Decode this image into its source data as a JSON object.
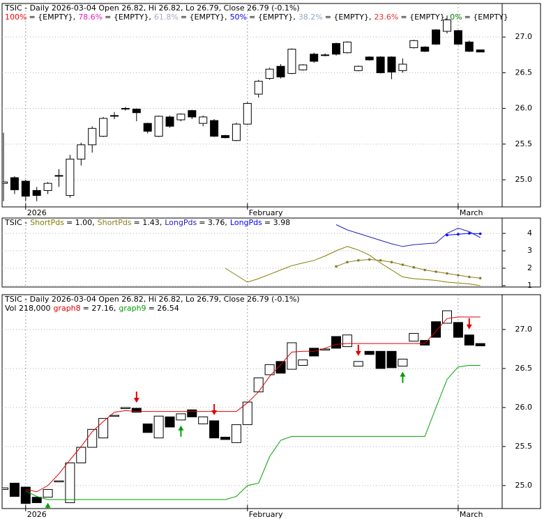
{
  "chart_data": [
    {
      "type": "candlestick",
      "title": "TSIC - Daily 2026-03-04 Open 26.82, Hi 26.82, Lo 26.79, Close 26.79 (-0.1%)",
      "fib_levels": [
        {
          "label": "100%",
          "text": "= {EMPTY},",
          "color": "#ff0000"
        },
        {
          "label": "78.6%",
          "text": "= {EMPTY},",
          "color": "#e020c0"
        },
        {
          "label": "61.8%",
          "text": "= {EMPTY},",
          "color": "#a8a8c8"
        },
        {
          "label": "50%",
          "text": "= {EMPTY},",
          "color": "#0000ff"
        },
        {
          "label": "38.2%",
          "text": "= {EMPTY},",
          "color": "#90a8c8"
        },
        {
          "label": "23.6%",
          "text": "= {EMPTY},",
          "color": "#e03030"
        },
        {
          "label": "0%",
          "text": "= {EMPTY}",
          "color": "#008000"
        }
      ],
      "categories": [
        null,
        null,
        "2026",
        null,
        null,
        null,
        null,
        null,
        null,
        null,
        null,
        null,
        null,
        null,
        null,
        null,
        null,
        null,
        null,
        null,
        null,
        null,
        "February",
        null,
        null,
        null,
        null,
        null,
        null,
        null,
        null,
        null,
        null,
        null,
        null,
        null,
        null,
        null,
        null,
        null,
        null,
        "March",
        null,
        null
      ],
      "open": [
        24.95,
        25.03,
        24.98,
        24.85,
        24.85,
        25.05,
        24.78,
        25.29,
        25.49,
        25.61,
        25.89,
        25.99,
        25.99,
        25.79,
        25.61,
        25.88,
        25.84,
        25.97,
        25.79,
        25.83,
        25.62,
        25.55,
        25.78,
        26.2,
        26.42,
        26.59,
        26.49,
        26.54,
        26.76,
        26.74,
        26.91,
        26.78,
        26.53,
        26.72,
        26.72,
        26.72,
        26.53,
        26.85,
        26.86,
        27.1,
        27.08,
        27.09,
        26.93,
        26.82
      ],
      "high": [
        25.66,
        25.05,
        25.0,
        24.9,
        24.97,
        25.15,
        25.35,
        25.52,
        25.75,
        25.88,
        25.95,
        26.02,
        26.0,
        25.8,
        25.9,
        25.9,
        25.93,
        25.98,
        25.9,
        25.85,
        25.63,
        25.8,
        26.09,
        26.4,
        26.57,
        26.62,
        26.84,
        26.62,
        26.78,
        26.77,
        26.92,
        26.94,
        26.6,
        26.73,
        26.73,
        26.73,
        26.7,
        26.96,
        26.87,
        27.11,
        27.3,
        27.1,
        26.95,
        26.82
      ],
      "low": [
        24.7,
        24.8,
        24.7,
        24.7,
        24.8,
        24.9,
        24.75,
        25.2,
        25.38,
        25.6,
        25.85,
        25.97,
        25.82,
        25.65,
        25.6,
        25.73,
        25.82,
        25.85,
        25.75,
        25.6,
        25.58,
        25.54,
        25.77,
        26.15,
        26.4,
        26.42,
        26.48,
        26.53,
        26.64,
        26.73,
        26.74,
        26.77,
        26.52,
        26.67,
        26.49,
        26.41,
        26.5,
        26.84,
        26.79,
        26.89,
        27.05,
        26.89,
        26.79,
        26.79
      ],
      "close": [
        24.97,
        24.86,
        24.77,
        24.78,
        24.95,
        25.06,
        25.29,
        25.49,
        25.72,
        25.86,
        25.9,
        26.0,
        25.94,
        25.68,
        25.89,
        25.75,
        25.92,
        25.88,
        25.88,
        25.61,
        25.59,
        25.78,
        26.07,
        26.38,
        26.55,
        26.44,
        26.83,
        26.61,
        26.66,
        26.75,
        26.76,
        26.93,
        26.59,
        26.68,
        26.5,
        26.51,
        26.62,
        26.95,
        26.8,
        26.9,
        27.24,
        26.9,
        26.8,
        26.79
      ],
      "ylim": [
        24.62,
        27.47
      ],
      "yticks": [
        {
          "value": 25,
          "label": "25.0"
        },
        {
          "value": 25.5,
          "label": "25.5"
        },
        {
          "value": 26,
          "label": "26.0"
        },
        {
          "value": 26.5,
          "label": "26.5"
        },
        {
          "value": 27,
          "label": "27.0"
        }
      ],
      "grid": true
    },
    {
      "type": "line",
      "title": "TSIC -",
      "series": [
        {
          "name": "ShortPds",
          "legend_text": "= 1.00,",
          "color": "#808000",
          "dotted": false,
          "values": [
            null,
            null,
            null,
            null,
            null,
            null,
            null,
            null,
            null,
            null,
            null,
            null,
            null,
            null,
            null,
            null,
            null,
            null,
            null,
            null,
            2.0,
            1.6,
            1.2,
            1.4,
            1.65,
            1.9,
            2.15,
            2.3,
            2.45,
            2.7,
            3.0,
            3.25,
            3.05,
            2.75,
            2.3,
            1.9,
            1.5,
            1.4,
            1.35,
            1.3,
            1.2,
            1.15,
            1.1,
            1.0
          ]
        },
        {
          "name": "ShortPds",
          "legend_text": "= 1.43,",
          "color": "#8a7a20",
          "dotted": true,
          "values": [
            null,
            null,
            null,
            null,
            null,
            null,
            null,
            null,
            null,
            null,
            null,
            null,
            null,
            null,
            null,
            null,
            null,
            null,
            null,
            null,
            null,
            null,
            null,
            null,
            null,
            null,
            null,
            null,
            null,
            null,
            2.1,
            2.35,
            2.45,
            2.5,
            2.45,
            2.35,
            2.2,
            2.05,
            1.9,
            1.8,
            1.7,
            1.6,
            1.5,
            1.43
          ]
        },
        {
          "name": "LongPds",
          "legend_text": "= 3.76,",
          "color": "#2020c0",
          "dotted": false,
          "values": [
            null,
            null,
            null,
            null,
            null,
            null,
            null,
            null,
            null,
            null,
            null,
            null,
            null,
            null,
            null,
            null,
            null,
            null,
            null,
            null,
            null,
            null,
            null,
            null,
            null,
            null,
            null,
            null,
            null,
            null,
            4.5,
            4.2,
            4.0,
            3.8,
            3.6,
            3.4,
            3.25,
            3.35,
            3.4,
            3.45,
            4.0,
            4.3,
            4.1,
            3.76
          ]
        },
        {
          "name": "LongPds",
          "legend_text": "= 3.98",
          "color": "#0000ff",
          "dotted": true,
          "values": [
            null,
            null,
            null,
            null,
            null,
            null,
            null,
            null,
            null,
            null,
            null,
            null,
            null,
            null,
            null,
            null,
            null,
            null,
            null,
            null,
            null,
            null,
            null,
            null,
            null,
            null,
            null,
            null,
            null,
            null,
            null,
            null,
            null,
            null,
            null,
            null,
            null,
            null,
            null,
            null,
            3.9,
            3.95,
            4.0,
            3.98
          ]
        }
      ],
      "ylim": [
        0.92,
        4.88
      ],
      "yticks": [
        1,
        2,
        3,
        4
      ],
      "grid": true
    },
    {
      "type": "box",
      "title": "TSIC - Daily 2026-03-04 Open 26.82, Hi 26.82, Lo 26.79, Close 26.79 (-0.1%)",
      "volume_label": "Vol 218,000",
      "series": [
        {
          "name": "graph8",
          "legend_text": "= 27.16,",
          "color": "#e00000",
          "values": [
            null,
            null,
            24.95,
            24.92,
            25.0,
            25.15,
            25.33,
            25.5,
            25.69,
            25.82,
            25.94,
            25.96,
            25.95,
            25.95,
            25.95,
            25.95,
            25.95,
            25.95,
            25.95,
            25.95,
            25.95,
            25.95,
            26.06,
            26.2,
            26.4,
            26.55,
            26.71,
            26.72,
            26.72,
            26.76,
            26.81,
            26.82,
            26.82,
            26.82,
            26.82,
            26.82,
            26.82,
            26.82,
            26.82,
            26.98,
            27.14,
            27.16,
            27.16,
            27.16
          ]
        },
        {
          "name": "graph9",
          "legend_text": "= 26.54",
          "color": "#00a000",
          "values": [
            null,
            null,
            24.93,
            24.86,
            24.82,
            24.82,
            24.82,
            24.82,
            24.82,
            24.82,
            24.82,
            24.82,
            24.82,
            24.82,
            24.82,
            24.82,
            24.82,
            24.82,
            24.82,
            24.82,
            24.82,
            24.86,
            25.0,
            25.03,
            25.37,
            25.58,
            25.63,
            25.63,
            25.63,
            25.63,
            25.63,
            25.63,
            25.63,
            25.63,
            25.63,
            25.63,
            25.63,
            25.63,
            25.63,
            26.0,
            26.36,
            26.52,
            26.54,
            26.54
          ]
        }
      ],
      "sell_signals": [
        12,
        19,
        32,
        42
      ],
      "buy_signals": [
        4,
        16,
        36
      ],
      "ylim": [
        24.705,
        27.446
      ],
      "yticks": [
        {
          "value": 25,
          "label": "25.0"
        },
        {
          "value": 25.5,
          "label": "25.5"
        },
        {
          "value": 26,
          "label": "26.0"
        },
        {
          "value": 26.5,
          "label": "26.5"
        },
        {
          "value": 27,
          "label": "27.0"
        }
      ],
      "grid": true
    }
  ]
}
